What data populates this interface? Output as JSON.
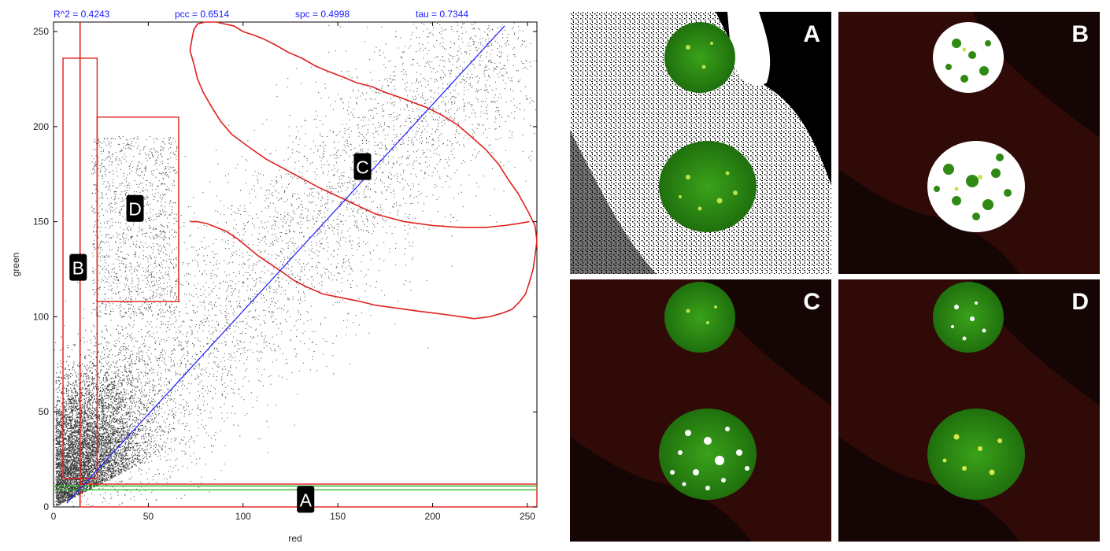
{
  "stats": {
    "r2": "R^2 = 0.4243",
    "pcc": "pcc = 0.6514",
    "spc": "spc = 0.4998",
    "tau": "tau = 0.7344"
  },
  "chart_data": {
    "type": "scatter",
    "title": "",
    "xlabel": "red",
    "ylabel": "green",
    "xlim": [
      0,
      255
    ],
    "ylim": [
      0,
      255
    ],
    "xticks": [
      0,
      50,
      100,
      150,
      200,
      250
    ],
    "yticks": [
      0,
      50,
      100,
      150,
      200,
      250
    ],
    "regression_line": {
      "x": [
        7,
        238
      ],
      "y": [
        2,
        253
      ]
    },
    "threshold_lines": {
      "x": 14,
      "y": [
        9,
        11
      ]
    },
    "regions": [
      {
        "label": "A",
        "shape": "rectangle",
        "x": [
          14,
          255
        ],
        "y": [
          0,
          12
        ]
      },
      {
        "label": "B",
        "shape": "rectangle",
        "x": [
          5,
          23
        ],
        "y": [
          15,
          236
        ]
      },
      {
        "label": "C",
        "shape": "polygon",
        "x": [
          72,
          76,
          81,
          86,
          91,
          97,
          102,
          108,
          114,
          120,
          127,
          133,
          142,
          152,
          162,
          170,
          178,
          185,
          192,
          200,
          208,
          215,
          222,
          230,
          237,
          242,
          246,
          249,
          251,
          253,
          254,
          255,
          254,
          250,
          245,
          240,
          235,
          228,
          220,
          213,
          205,
          197,
          189,
          181,
          175,
          168,
          160,
          153,
          145,
          138,
          131,
          124,
          117,
          111,
          106,
          100,
          95,
          90,
          86,
          80,
          76,
          74,
          73,
          72,
          74,
          76,
          79,
          83,
          88,
          94,
          102,
          112,
          125,
          140,
          155,
          170,
          185,
          200,
          215,
          228,
          238,
          245,
          251
        ],
        "y": [
          150,
          150,
          149,
          147,
          145,
          141,
          137,
          132,
          128,
          124,
          119,
          116,
          112,
          110,
          108,
          106,
          105,
          104,
          103,
          102,
          101,
          100,
          99,
          100,
          102,
          104,
          108,
          112,
          118,
          125,
          132,
          140,
          148,
          156,
          165,
          172,
          180,
          188,
          195,
          201,
          206,
          210,
          213,
          216,
          218,
          221,
          223,
          226,
          229,
          232,
          236,
          239,
          243,
          246,
          248,
          250,
          253,
          254,
          255,
          255,
          254,
          251,
          246,
          240,
          233,
          225,
          218,
          211,
          203,
          196,
          190,
          183,
          176,
          168,
          161,
          154,
          150,
          148,
          147,
          147,
          148,
          149,
          150
        ]
      },
      {
        "label": "D",
        "shape": "rectangle",
        "x": [
          23,
          66
        ],
        "y": [
          108,
          205
        ]
      }
    ]
  },
  "panels": [
    {
      "letter": "A"
    },
    {
      "letter": "B"
    },
    {
      "letter": "C"
    },
    {
      "letter": "D"
    }
  ]
}
